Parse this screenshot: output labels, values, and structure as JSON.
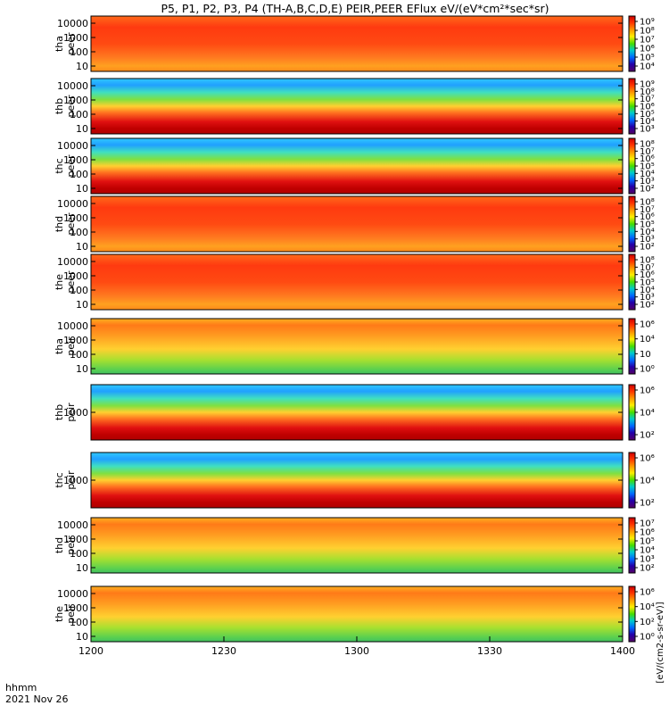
{
  "title": "P5, P1, P2, P3, P4 (TH-A,B,C,D,E) PEIR,PEER EFlux eV/(eV*cm²*sec*sr)",
  "footer": {
    "time_label": "hhmm",
    "date_label": "2021 Nov 26"
  },
  "colorbar_label": "[eV/(cm2-s-sr-eV)]",
  "chart_data": {
    "type": "heatmap",
    "title": "P5, P1, P2, P3, P4 (TH-A,B,C,D,E) PEIR,PEER EFlux eV/(eV*cm²*sec*sr)",
    "xlabel": "hhmm",
    "x_ticks": [
      "1200",
      "1230",
      "1300",
      "1330",
      "1400"
    ],
    "x_range": [
      "12:00",
      "14:00"
    ],
    "date": "2021 Nov 26",
    "yscale": "log",
    "colorscale": "rainbow (black-purple-blue-cyan-green-yellow-orange-red)",
    "panels": [
      {
        "ylabel": [
          "tha",
          "peer"
        ],
        "yticks": [
          "10000",
          "1000",
          "100",
          "10"
        ],
        "cb_ticks": [
          "10⁹",
          "10⁸",
          "10⁷",
          "10⁶",
          "10⁵",
          "10⁴"
        ],
        "cb_exps": [
          9,
          8,
          7,
          6,
          5,
          4
        ],
        "dominant_level": "high"
      },
      {
        "ylabel": [
          "thb",
          "peer"
        ],
        "yticks": [
          "10000",
          "1000",
          "100",
          "10"
        ],
        "cb_ticks": [
          "10⁹",
          "10⁸",
          "10⁷",
          "10⁶",
          "10⁵",
          "10⁴",
          "10³"
        ],
        "cb_exps": [
          9,
          8,
          7,
          6,
          5,
          4,
          3
        ],
        "dominant_level": "mixed"
      },
      {
        "ylabel": [
          "thc",
          "peer"
        ],
        "yticks": [
          "10000",
          "1000",
          "100",
          "10"
        ],
        "cb_ticks": [
          "10⁸",
          "10⁷",
          "10⁶",
          "10⁵",
          "10⁴",
          "10³",
          "10²"
        ],
        "cb_exps": [
          8,
          7,
          6,
          5,
          4,
          3,
          2
        ],
        "dominant_level": "mixed"
      },
      {
        "ylabel": [
          "thd",
          "peer"
        ],
        "yticks": [
          "10000",
          "1000",
          "100",
          "10"
        ],
        "cb_ticks": [
          "10⁸",
          "10⁷",
          "10⁶",
          "10⁵",
          "10⁴",
          "10³",
          "10²"
        ],
        "cb_exps": [
          8,
          7,
          6,
          5,
          4,
          3,
          2
        ],
        "dominant_level": "high"
      },
      {
        "ylabel": [
          "the",
          "peer"
        ],
        "yticks": [
          "10000",
          "1000",
          "100",
          "10"
        ],
        "cb_ticks": [
          "10⁸",
          "10⁷",
          "10⁶",
          "10⁵",
          "10⁴",
          "10³",
          "10²"
        ],
        "cb_exps": [
          8,
          7,
          6,
          5,
          4,
          3,
          2
        ],
        "dominant_level": "high"
      },
      {
        "ylabel": [
          "tha",
          "peir"
        ],
        "yticks": [
          "10000",
          "1000",
          "100",
          "10"
        ],
        "cb_ticks": [
          "10⁶",
          "10⁴",
          "10⁲",
          "10⁰"
        ],
        "cb_exps": [
          6,
          4,
          2,
          0
        ],
        "dominant_level": "medium"
      },
      {
        "ylabel": [
          "thb",
          "peir"
        ],
        "yticks": [
          "1000"
        ],
        "cb_ticks": [
          "10⁶",
          "10⁴",
          "10²"
        ],
        "cb_exps": [
          6,
          4,
          2
        ],
        "dominant_level": "mixed"
      },
      {
        "ylabel": [
          "thc",
          "peir"
        ],
        "yticks": [
          "1000"
        ],
        "cb_ticks": [
          "10⁶",
          "10⁴",
          "10²"
        ],
        "cb_exps": [
          6,
          4,
          2
        ],
        "dominant_level": "mixed"
      },
      {
        "ylabel": [
          "thd",
          "peir"
        ],
        "yticks": [
          "10000",
          "1000",
          "100",
          "10"
        ],
        "cb_ticks": [
          "10⁷",
          "10⁶",
          "10⁵",
          "10⁴",
          "10³",
          "10²"
        ],
        "cb_exps": [
          7,
          6,
          5,
          4,
          3,
          2
        ],
        "dominant_level": "medium"
      },
      {
        "ylabel": [
          "the",
          "peir"
        ],
        "yticks": [
          "10000",
          "1000",
          "100",
          "10"
        ],
        "cb_ticks": [
          "10⁶",
          "10⁴",
          "10²",
          "10⁰"
        ],
        "cb_exps": [
          6,
          4,
          2,
          0
        ],
        "dominant_level": "medium"
      }
    ]
  }
}
